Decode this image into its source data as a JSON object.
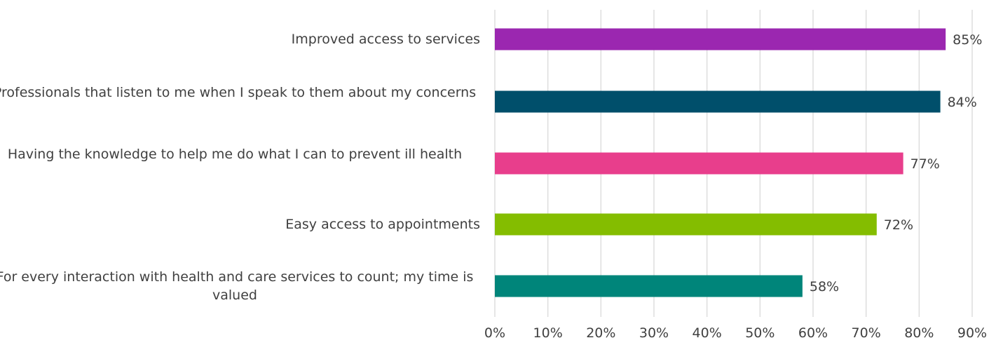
{
  "chart_data": {
    "type": "bar",
    "orientation": "horizontal",
    "title": "",
    "xlabel": "",
    "ylabel": "",
    "xlim": [
      0,
      90
    ],
    "x_ticks": [
      "0%",
      "10%",
      "20%",
      "30%",
      "40%",
      "50%",
      "60%",
      "70%",
      "80%",
      "90%"
    ],
    "grid": true,
    "legend": "none",
    "categories": [
      "Improved access to services",
      "Professionals that listen to me when I speak to them about my concerns",
      "Having the knowledge to help me do what I can to prevent ill health",
      "Easy access to appointments",
      "For every interaction with health and care services to count; my time is valued"
    ],
    "values": [
      85,
      84,
      77,
      72,
      58
    ],
    "value_labels": [
      "85%",
      "84%",
      "77%",
      "72%",
      "58%"
    ],
    "colors": [
      "#9b27b0",
      "#004f6b",
      "#e83e8c",
      "#84bd00",
      "#00857a"
    ]
  }
}
